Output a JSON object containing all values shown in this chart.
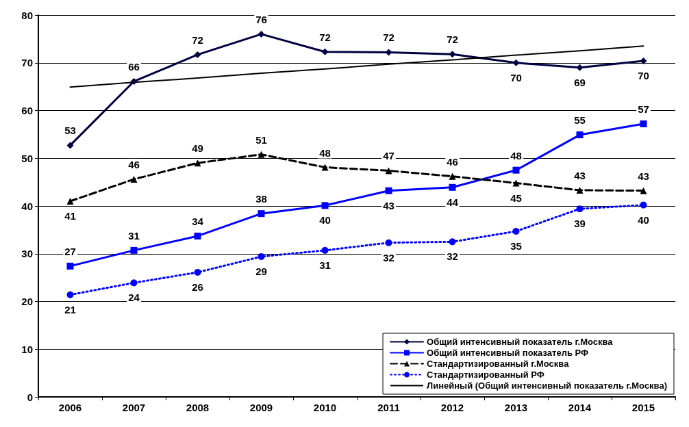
{
  "chart_data": {
    "type": "line",
    "categories": [
      "2006",
      "2007",
      "2008",
      "2009",
      "2010",
      "2011",
      "2012",
      "2013",
      "2014",
      "2015"
    ],
    "ylim": [
      0,
      80
    ],
    "yticks": [
      0,
      10,
      20,
      30,
      40,
      50,
      60,
      70,
      80
    ],
    "grid": "y",
    "legend": "bottom right",
    "series": [
      {
        "name": "Общий интенсивный показатель г.Москва",
        "color": "#000040",
        "marker": "diamond",
        "line_style": "solid",
        "values": [
          52.7,
          66.1,
          71.7,
          76.0,
          72.3,
          72.2,
          71.8,
          70.0,
          69.0,
          70.4
        ],
        "value_labels": [
          "53",
          "66",
          "72",
          "76",
          "72",
          "72",
          "72",
          "70",
          "69",
          "70"
        ]
      },
      {
        "name": "Общий интенсивный показатель РФ",
        "color": "#0000ff",
        "marker": "square",
        "line_style": "solid",
        "values": [
          27.4,
          30.7,
          33.7,
          38.4,
          40.1,
          43.2,
          43.9,
          47.5,
          54.9,
          57.2
        ],
        "value_labels": [
          "27",
          "31",
          "34",
          "38",
          "40",
          "43",
          "44",
          "48",
          "55",
          "57"
        ]
      },
      {
        "name": "Стандартизированный г.Москва",
        "color": "#000000",
        "marker": "triangle",
        "line_style": "dashed",
        "values": [
          41.0,
          45.6,
          49.0,
          50.8,
          48.1,
          47.4,
          46.2,
          44.8,
          43.3,
          43.2
        ],
        "value_labels": [
          "41",
          "46",
          "49",
          "51",
          "48",
          "47",
          "46",
          "45",
          "43",
          "43"
        ]
      },
      {
        "name": "Стандартизированный РФ",
        "color": "#0000ff",
        "marker": "circle",
        "line_style": "dotted",
        "values": [
          21.4,
          23.9,
          26.1,
          29.4,
          30.7,
          32.3,
          32.5,
          34.7,
          39.4,
          40.2
        ],
        "value_labels": [
          "21",
          "24",
          "26",
          "29",
          "31",
          "32",
          "32",
          "35",
          "39",
          "40"
        ]
      },
      {
        "name": "Линейный (Общий интенсивный показатель г.Москва)",
        "color": "#000000",
        "marker": "none",
        "line_style": "solid",
        "values": [
          64.9,
          65.9,
          66.8,
          67.8,
          68.7,
          69.7,
          70.6,
          71.6,
          72.5,
          73.5
        ]
      }
    ]
  }
}
